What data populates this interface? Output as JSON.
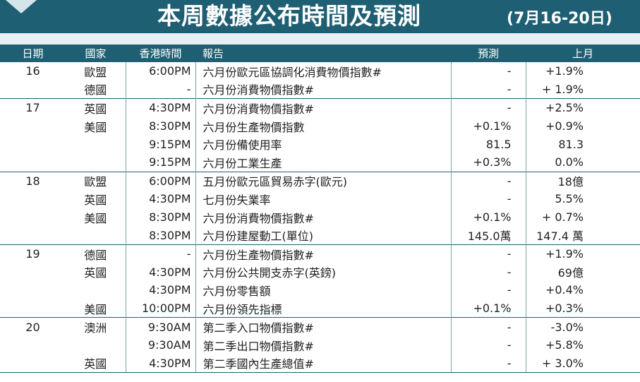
{
  "header": {
    "title": "本周數據公布時間及預測",
    "date_range": "(7月16-20日)"
  },
  "table": {
    "columns": [
      "日期",
      "國家",
      "香港時間",
      "報告",
      "預測",
      "上月"
    ],
    "groups": [
      {
        "date": "16",
        "rows": [
          {
            "country": "歐盟",
            "time": "6:00PM",
            "report": "六月份歐元區協調化消費物價指數#",
            "forecast": "-",
            "previous": "+1.9%"
          },
          {
            "country": "德國",
            "time": "-",
            "report": "六月份消費物價指數#",
            "forecast": "-",
            "previous": "+ 1.9%"
          }
        ]
      },
      {
        "date": "17",
        "rows": [
          {
            "country": "英國",
            "time": "4:30PM",
            "report": "六月份消費物價指數#",
            "forecast": "-",
            "previous": "+2.5%"
          },
          {
            "country": "美國",
            "time": "8:30PM",
            "report": "六月份生產物價指數",
            "forecast": "+0.1%",
            "previous": "+0.9%"
          },
          {
            "country": "",
            "time": "9:15PM",
            "report": "六月份備使用率",
            "forecast": "81.5",
            "previous": "81.3"
          },
          {
            "country": "",
            "time": "9:15PM",
            "report": "六月份工業生產",
            "forecast": "+0.3%",
            "previous": "0.0%"
          }
        ]
      },
      {
        "date": "18",
        "rows": [
          {
            "country": "歐盟",
            "time": "6:00PM",
            "report": "五月份歐元區貿易赤字(歐元)",
            "forecast": "-",
            "previous": "18億"
          },
          {
            "country": "英國",
            "time": "4:30PM",
            "report": "七月份失業率",
            "forecast": "-",
            "previous": "5.5%"
          },
          {
            "country": "美國",
            "time": "8:30PM",
            "report": "六月份消費物價指數#",
            "forecast": "+0.1%",
            "previous": "+ 0.7%"
          },
          {
            "country": "",
            "time": "8:30PM",
            "report": "六月份建屋動工(單位)",
            "forecast": "145.0萬",
            "previous": "147.4 萬"
          }
        ]
      },
      {
        "date": "19",
        "rows": [
          {
            "country": "德國",
            "time": "-",
            "report": "六月份生產物價指數#",
            "forecast": "-",
            "previous": "+1.9%"
          },
          {
            "country": "英國",
            "time": "4:30PM",
            "report": "六月份公共開支赤字(英鎊)",
            "forecast": "-",
            "previous": "69億"
          },
          {
            "country": "",
            "time": "4:30PM",
            "report": "六月份零售額",
            "forecast": "-",
            "previous": "+0.4%"
          },
          {
            "country": "美國",
            "time": "10:00PM",
            "report": "六月份領先指標",
            "forecast": "+0.1%",
            "previous": "+0.3%"
          }
        ]
      },
      {
        "date": "20",
        "rows": [
          {
            "country": "澳洲",
            "time": "9:30AM",
            "report": "第二季入口物價指數#",
            "forecast": "-",
            "previous": "-3.0%"
          },
          {
            "country": "",
            "time": "9:30AM",
            "report": "第二季出口物價指數#",
            "forecast": "-",
            "previous": "+5.8%"
          },
          {
            "country": "英國",
            "time": "4:30PM",
            "report": "第二季國內生產總值#",
            "forecast": "-",
            "previous": "+ 3.0%"
          }
        ]
      }
    ]
  },
  "colors": {
    "header_bg": "#1f5f73",
    "band_bg": "#e8eff3"
  }
}
